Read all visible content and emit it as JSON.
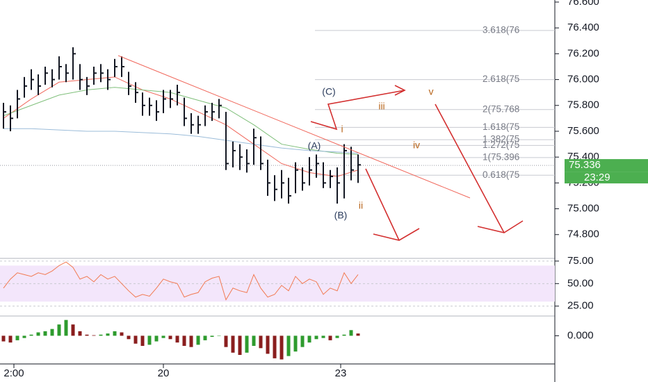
{
  "chart_data": [
    {
      "type": "ohlc",
      "ylim": [
        74.616,
        76.616
      ],
      "yticks": [
        {
          "value": 74.8,
          "label": "74.800"
        },
        {
          "value": 75.0,
          "label": "75.000"
        },
        {
          "value": 75.2,
          "label": "75.200"
        },
        {
          "value": 75.4,
          "label": "75.400"
        },
        {
          "value": 75.6,
          "label": "75.600"
        },
        {
          "value": 75.8,
          "label": "75.800"
        },
        {
          "value": 76.0,
          "label": "76.000"
        },
        {
          "value": 76.2,
          "label": "76.200"
        },
        {
          "value": 76.4,
          "label": "76.400"
        },
        {
          "value": 76.6,
          "label": "76.600"
        }
      ],
      "xlim": [
        -0.5,
        79.3
      ],
      "color": "#131722",
      "high": [
        75.82,
        75.8,
        75.92,
        76.02,
        76.08,
        76.04,
        76.1,
        76.08,
        76.18,
        76.12,
        76.25,
        76.12,
        76.02,
        76.1,
        76.12,
        76.08,
        76.16,
        76.18,
        76.06,
        75.98,
        75.9,
        75.86,
        75.84,
        75.92,
        75.92,
        75.96,
        75.86,
        75.74,
        75.72,
        75.8,
        75.82,
        75.85,
        75.75,
        75.52,
        75.5,
        75.46,
        75.62,
        75.56,
        75.38,
        75.26,
        75.3,
        75.24,
        75.36,
        75.32,
        75.4,
        75.42,
        75.36,
        75.3,
        75.32,
        75.5,
        75.48,
        75.42
      ],
      "low": [
        75.62,
        75.6,
        75.7,
        75.86,
        75.92,
        75.88,
        75.96,
        75.94,
        76.0,
        75.98,
        76.0,
        75.92,
        75.88,
        75.96,
        75.98,
        75.92,
        76.02,
        76.02,
        75.88,
        75.82,
        75.72,
        75.72,
        75.68,
        75.74,
        75.78,
        75.8,
        75.64,
        75.58,
        75.58,
        75.64,
        75.68,
        75.7,
        75.3,
        75.32,
        75.3,
        75.28,
        75.34,
        75.3,
        75.1,
        75.06,
        75.08,
        75.04,
        75.12,
        75.14,
        75.18,
        75.24,
        75.16,
        75.16,
        75.04,
        75.08,
        75.22,
        75.2
      ],
      "close": [
        75.75,
        75.7,
        75.85,
        75.95,
        76.0,
        75.95,
        76.05,
        76.0,
        76.1,
        76.05,
        76.2,
        76.0,
        75.95,
        76.05,
        76.05,
        76.0,
        76.1,
        76.1,
        75.95,
        75.9,
        75.8,
        75.8,
        75.75,
        75.85,
        75.85,
        75.9,
        75.7,
        75.65,
        75.65,
        75.75,
        75.75,
        75.8,
        75.35,
        75.45,
        75.4,
        75.35,
        75.55,
        75.35,
        75.2,
        75.15,
        75.2,
        75.1,
        75.3,
        75.2,
        75.3,
        75.35,
        75.2,
        75.25,
        75.2,
        75.45,
        75.3,
        75.34
      ],
      "lines": [
        {
          "color": "#f0665a",
          "x": [
            0,
            4,
            8,
            12,
            16,
            20,
            24,
            28,
            32,
            36,
            40,
            44,
            48,
            51
          ],
          "values": [
            75.7,
            75.85,
            75.98,
            76.0,
            76.02,
            75.92,
            75.85,
            75.75,
            75.65,
            75.5,
            75.35,
            75.28,
            75.25,
            75.3
          ]
        },
        {
          "color": "#7fbf7a",
          "x": [
            0,
            4,
            8,
            12,
            16,
            20,
            24,
            28,
            32,
            36,
            40,
            44,
            48,
            51
          ],
          "values": [
            75.72,
            75.8,
            75.88,
            75.92,
            75.94,
            75.92,
            75.9,
            75.84,
            75.78,
            75.65,
            75.5,
            75.46,
            75.43,
            75.42
          ]
        },
        {
          "color": "#9bbcd9",
          "x": [
            0,
            4,
            8,
            12,
            16,
            20,
            24,
            28,
            32,
            36,
            40,
            44,
            48,
            51
          ],
          "values": [
            75.62,
            75.62,
            75.61,
            75.6,
            75.6,
            75.59,
            75.58,
            75.56,
            75.53,
            75.5,
            75.47,
            75.45,
            75.44,
            75.43
          ]
        }
      ],
      "fib": [
        {
          "value": 76.38,
          "label": "3.618(76"
        },
        {
          "value": 76.0,
          "label": "2.618(75"
        },
        {
          "value": 75.768,
          "label": "2(75.768"
        },
        {
          "value": 75.63,
          "label": "1.618(75"
        },
        {
          "value": 75.535,
          "label": "1.382(75"
        },
        {
          "value": 75.49,
          "label": "1.272(75"
        },
        {
          "value": 75.396,
          "label": "1(75.396"
        },
        {
          "value": 75.26,
          "label": "0.618(75"
        }
      ],
      "last_price": {
        "value": 75.336,
        "label": "75.336"
      },
      "last_price_color": "#4caf50",
      "countdown": "23:29",
      "wave_labels": [
        "(A)",
        "(B)",
        "(C)",
        "i",
        "ii",
        "iii",
        "iv",
        "v"
      ]
    },
    {
      "type": "line",
      "ylim": [
        14,
        78
      ],
      "yticks": [
        {
          "value": 75,
          "label": "75.00"
        },
        {
          "value": 50,
          "label": "50.00"
        },
        {
          "value": 25,
          "label": "25.00"
        }
      ],
      "band": [
        30,
        70
      ],
      "band_color": "#f3e6fb",
      "color": "#f27a52",
      "xlim": [
        -0.5,
        79.3
      ],
      "values": [
        45,
        55,
        62,
        60,
        58,
        62,
        60,
        64,
        70,
        74,
        68,
        55,
        58,
        52,
        60,
        55,
        58,
        50,
        42,
        35,
        38,
        36,
        45,
        55,
        52,
        50,
        35,
        38,
        40,
        52,
        56,
        58,
        32,
        45,
        42,
        40,
        60,
        45,
        35,
        38,
        48,
        42,
        58,
        50,
        55,
        52,
        38,
        45,
        42,
        62,
        50,
        60
      ]
    },
    {
      "type": "bar",
      "ylim": [
        -0.05,
        0.035
      ],
      "yticks": [
        {
          "value": 0,
          "label": "0.000"
        }
      ],
      "xlim": [
        -0.5,
        79.3
      ],
      "up_color": "#2e9b2e",
      "down_color": "#8a1e1e",
      "values": [
        -0.01,
        -0.012,
        -0.008,
        -0.004,
        0.002,
        0.006,
        0.008,
        0.012,
        0.02,
        0.028,
        0.02,
        0.008,
        0.002,
        0.001,
        0.002,
        0.004,
        0.008,
        0.006,
        -0.006,
        -0.014,
        -0.018,
        -0.016,
        -0.01,
        -0.004,
        -0.006,
        -0.012,
        -0.018,
        -0.02,
        -0.016,
        -0.008,
        -0.002,
        0.0,
        -0.02,
        -0.03,
        -0.034,
        -0.03,
        -0.018,
        -0.022,
        -0.032,
        -0.04,
        -0.042,
        -0.036,
        -0.028,
        -0.02,
        -0.012,
        -0.006,
        -0.004,
        -0.008,
        -0.004,
        0.002,
        0.01,
        0.004
      ],
      "xticks": [
        {
          "value": 1.5,
          "label": "2:00"
        },
        {
          "value": 23,
          "label": "20"
        },
        {
          "value": 48.5,
          "label": "23"
        }
      ]
    }
  ]
}
